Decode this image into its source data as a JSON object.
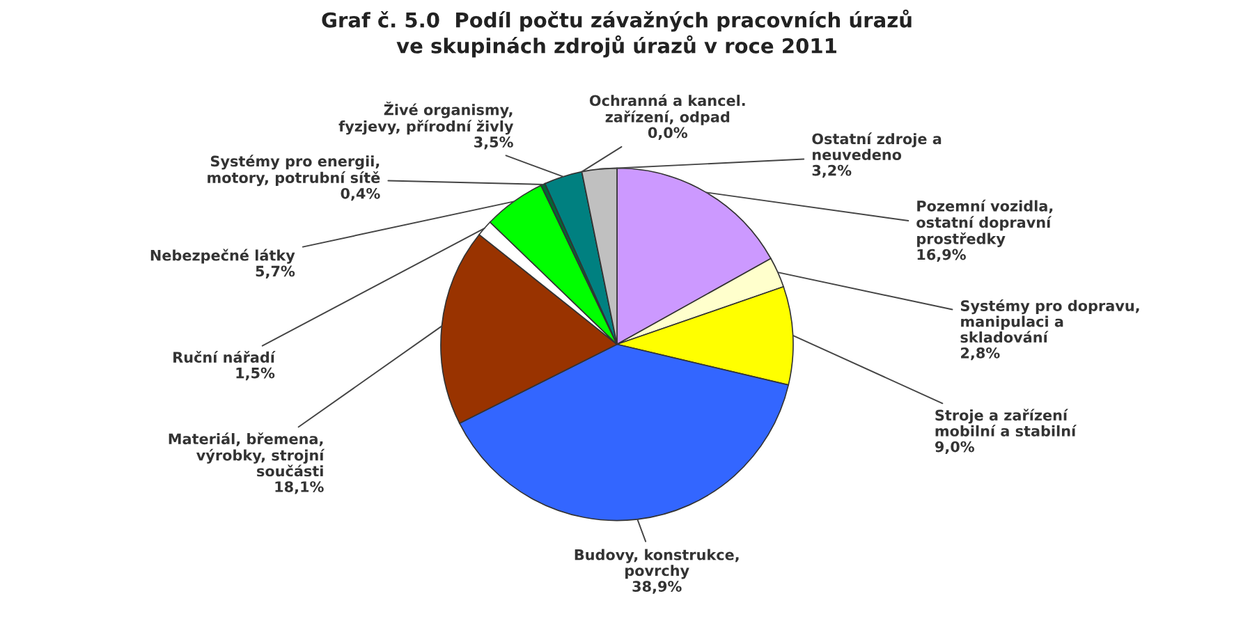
{
  "chart_data": {
    "type": "pie",
    "title": "Graf č. 5.0  Podíl počtu závažných pracovních úrazů\nve skupinách zdrojů úrazů v roce 2011",
    "categories": [
      "Pozemní vozidla,\nostatní dopravní\nprostředky",
      "Systémy pro dopravu,\nmanipulaci a\nskladování",
      "Stroje a zařízení\nmobilní a stabilní",
      "Budovy, konstrukce,\npovrchy",
      "Materiál, břemena,\nvýrobky, strojní\nsoučásti",
      "Ruční nářadí",
      "Nebezpečné látky",
      "Systémy pro energii,\nmotory, potrubní sítě",
      "Živé organismy,\nfyzjevy, přírodní živly",
      "Ochranná a kancel.\nzařízení, odpad",
      "Ostatní zdroje a\nneuvedeno"
    ],
    "values": [
      16.9,
      2.8,
      9.0,
      38.9,
      18.1,
      1.5,
      5.7,
      0.4,
      3.5,
      0.0,
      3.2
    ],
    "value_labels": [
      "16,9%",
      "2,8%",
      "9,0%",
      "38,9%",
      "18,1%",
      "1,5%",
      "5,7%",
      "0,4%",
      "3,5%",
      "0,0%",
      "3,2%"
    ],
    "colors": [
      "#cc99ff",
      "#ffffcc",
      "#ffff00",
      "#3366ff",
      "#993300",
      "#ffffff",
      "#00ff00",
      "#006633",
      "#008080",
      "#999999",
      "#c0c0c0"
    ]
  }
}
